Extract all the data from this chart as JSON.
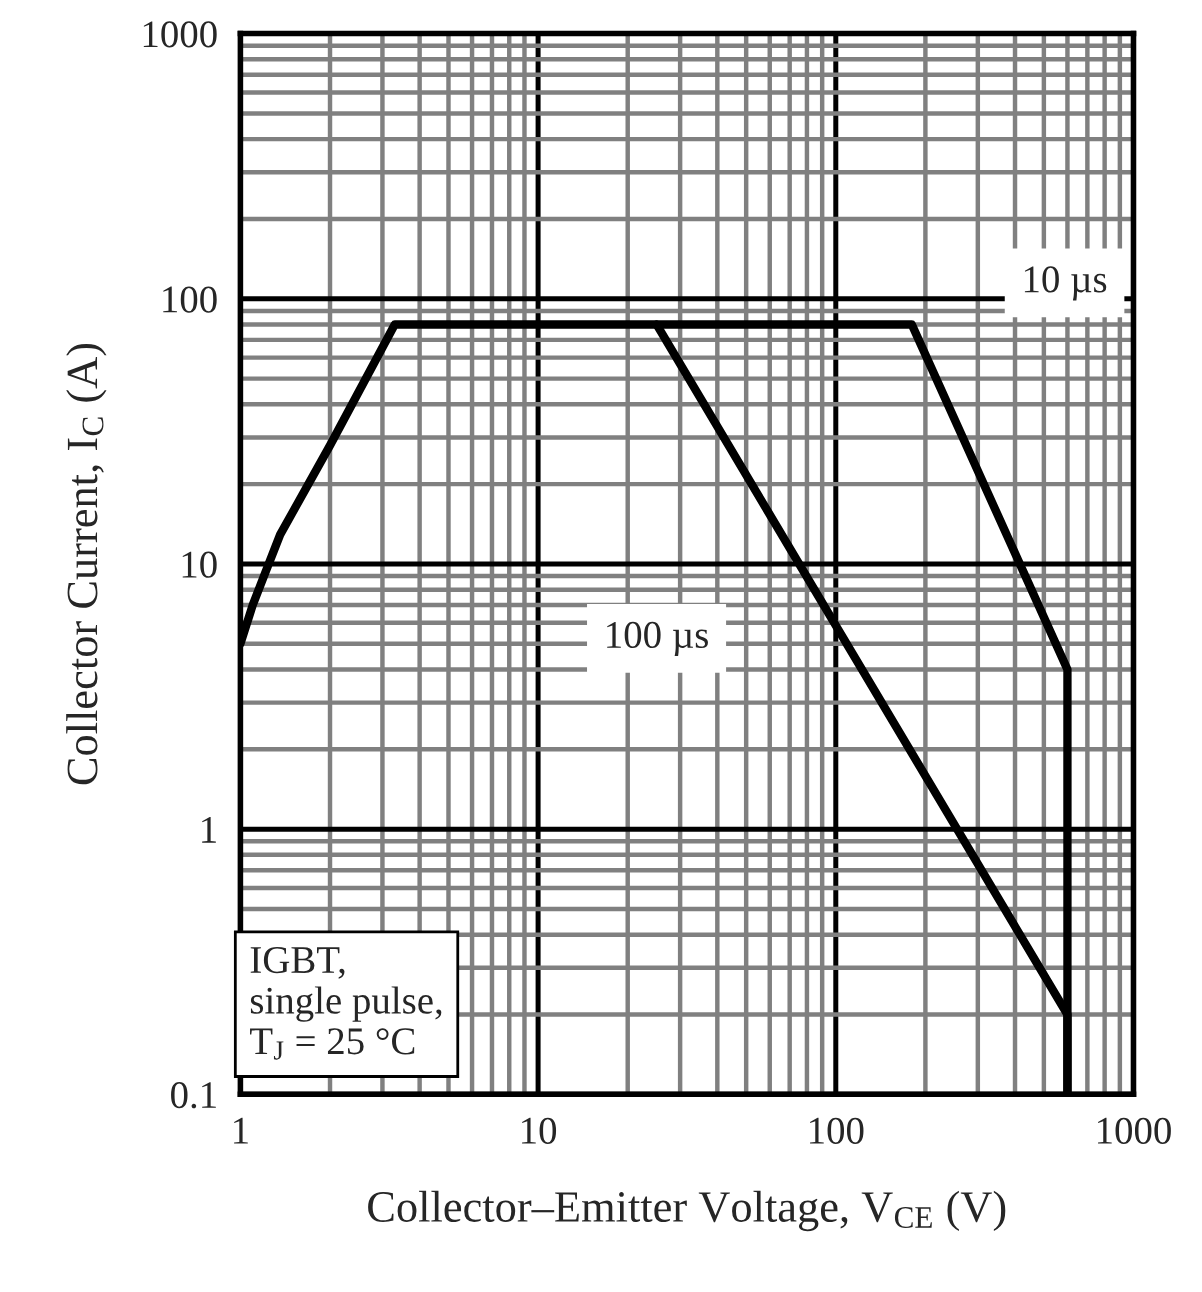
{
  "chart_data": {
    "type": "line",
    "xlabel": "Collector–Emitter Voltage, V$_{CE}$ (V)",
    "ylabel": "Collector Current, I$_{C}$ (A)",
    "log": "xy",
    "xlim": [
      1,
      1000
    ],
    "xticks": [
      1,
      10,
      100,
      1000
    ],
    "ylim": [
      0.1,
      1000
    ],
    "yticks": [
      0.1,
      1,
      10,
      100,
      1000
    ],
    "grid": true,
    "legend": false,
    "marker": "none",
    "line_style": "solid",
    "series": [
      {
        "name": "10 µs",
        "color": "#000000",
        "x": [
          1,
          1.1,
          1.2,
          1.36,
          2,
          3.3,
          180,
          600,
          600
        ],
        "values": [
          5,
          7,
          9,
          12.9,
          28,
          80,
          80,
          4,
          0.1
        ]
      },
      {
        "name": "100 µs",
        "color": "#000000",
        "x": [
          25,
          600,
          600
        ],
        "values": [
          80,
          0.2,
          0.1
        ]
      }
    ],
    "annotations": [
      "IGBT,\nsingle pulse,\nT$_{J}$ = 25 °C"
    ]
  }
}
